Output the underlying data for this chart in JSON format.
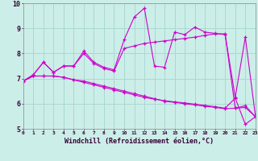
{
  "title": "",
  "xlabel": "Windchill (Refroidissement éolien,°C)",
  "ylabel": "",
  "background_color": "#cceee8",
  "grid_color": "#aad8d2",
  "line_color": "#cc00cc",
  "x_ticks": [
    0,
    1,
    2,
    3,
    4,
    5,
    6,
    7,
    8,
    9,
    10,
    11,
    12,
    13,
    14,
    15,
    16,
    17,
    18,
    19,
    20,
    21,
    22,
    23
  ],
  "ylim": [
    5,
    10
  ],
  "xlim": [
    0,
    23
  ],
  "y_ticks": [
    5,
    6,
    7,
    8,
    9,
    10
  ],
  "series": [
    [
      6.9,
      7.15,
      7.65,
      7.25,
      7.5,
      7.5,
      8.1,
      7.65,
      7.45,
      7.35,
      8.55,
      9.45,
      9.8,
      7.5,
      7.45,
      8.85,
      8.75,
      9.05,
      8.85,
      8.8,
      8.75,
      6.25,
      8.65,
      5.5
    ],
    [
      6.9,
      7.15,
      7.65,
      7.25,
      7.5,
      7.5,
      8.0,
      7.6,
      7.4,
      7.3,
      8.2,
      8.3,
      8.4,
      8.45,
      8.5,
      8.55,
      8.6,
      8.65,
      8.72,
      8.78,
      8.78,
      5.82,
      5.92,
      5.48
    ],
    [
      6.9,
      7.1,
      7.1,
      7.1,
      7.05,
      6.95,
      6.9,
      6.8,
      6.7,
      6.6,
      6.5,
      6.4,
      6.3,
      6.2,
      6.1,
      6.05,
      6.0,
      5.95,
      5.9,
      5.85,
      5.8,
      5.82,
      5.85,
      5.48
    ],
    [
      6.9,
      7.1,
      7.1,
      7.1,
      7.05,
      6.95,
      6.85,
      6.75,
      6.65,
      6.55,
      6.45,
      6.35,
      6.25,
      6.18,
      6.12,
      6.07,
      6.03,
      5.98,
      5.93,
      5.88,
      5.82,
      6.22,
      5.18,
      5.48
    ]
  ]
}
